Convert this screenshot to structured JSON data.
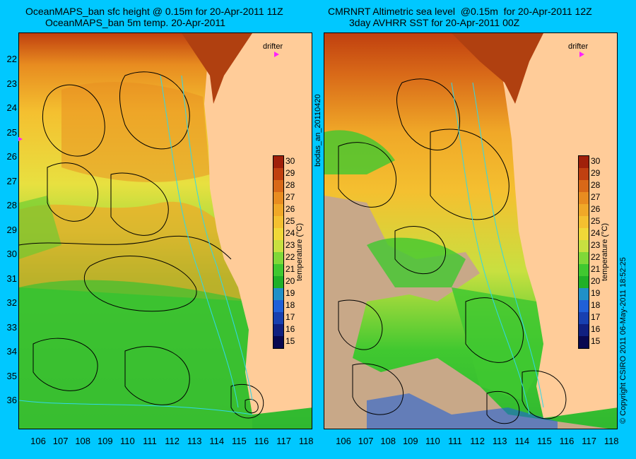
{
  "left": {
    "title_line1": "OceanMAPS_ban sfc height @ 0.15m for 20-Apr-2011 11Z",
    "title_line2": "OceanMAPS_ban 5m temp. 20-Apr-2011",
    "drifter_label": "drifter"
  },
  "right": {
    "title_line1": "CMRNRT Altimetric sea level  @0.15m  for 20-Apr-2011 12Z",
    "title_line2": "3day AVHRR SST for 20-Apr-2011 00Z",
    "drifter_label": "drifter"
  },
  "y_ticks": [
    "22",
    "23",
    "24",
    "25",
    "26",
    "27",
    "28",
    "29",
    "30",
    "31",
    "32",
    "33",
    "34",
    "35",
    "36"
  ],
  "x_ticks": [
    "106",
    "107",
    "108",
    "109",
    "110",
    "111",
    "112",
    "113",
    "114",
    "115",
    "116",
    "117",
    "118"
  ],
  "colorbar": {
    "labels": [
      "30",
      "29",
      "28",
      "27",
      "26",
      "25",
      "24",
      "23",
      "22",
      "21",
      "20",
      "19",
      "18",
      "17",
      "16",
      "15"
    ],
    "title": "temperature (°C)",
    "colors": [
      "#a0200a",
      "#c04010",
      "#d86818",
      "#e88c20",
      "#f0a828",
      "#f4c030",
      "#f0d838",
      "#c8e040",
      "#80d838",
      "#40c830",
      "#20b028",
      "#2090c8",
      "#2060d8",
      "#1840b0",
      "#102080",
      "#080850"
    ]
  },
  "side_label": "bodas_an_20110420",
  "copyright": "© Copyright CSIRO 2011  06-May-2011 18:52:25",
  "colors": {
    "background": "#00c8ff",
    "land": "#ffcc99",
    "cloud": "#c8a888"
  }
}
